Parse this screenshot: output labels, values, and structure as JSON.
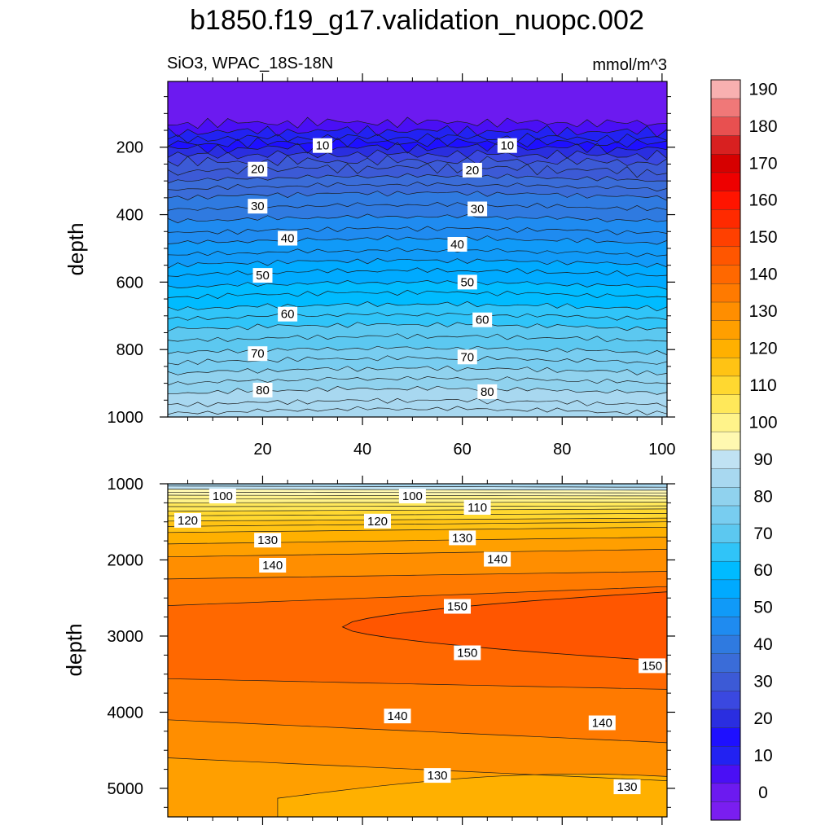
{
  "figure": {
    "title": "b1850.f19_g17.validation_nuopc.002",
    "left_string": "SiO3, WPAC_18S-18N",
    "right_string": "mmol/m^3"
  },
  "chart_data": [
    {
      "type": "contour",
      "panel": "top",
      "title": "",
      "xlabel": "",
      "ylabel": "depth",
      "xlim": [
        1,
        101
      ],
      "ylim": [
        1000,
        5
      ],
      "xticks": [
        20,
        40,
        60,
        80,
        100
      ],
      "yticks": [
        200,
        400,
        600,
        800,
        1000
      ],
      "description_values": "SiO3 increases with depth from ~0 near surface to ~90 at 1000 m",
      "contour_labels": [
        {
          "x": 32,
          "y": 195,
          "value": "10"
        },
        {
          "x": 69,
          "y": 195,
          "value": "10"
        },
        {
          "x": 19,
          "y": 265,
          "value": "20"
        },
        {
          "x": 62,
          "y": 268,
          "value": "20"
        },
        {
          "x": 19,
          "y": 375,
          "value": "30"
        },
        {
          "x": 63,
          "y": 383,
          "value": "30"
        },
        {
          "x": 25,
          "y": 470,
          "value": "40"
        },
        {
          "x": 59,
          "y": 488,
          "value": "40"
        },
        {
          "x": 20,
          "y": 580,
          "value": "50"
        },
        {
          "x": 61,
          "y": 600,
          "value": "50"
        },
        {
          "x": 25,
          "y": 695,
          "value": "60"
        },
        {
          "x": 64,
          "y": 712,
          "value": "60"
        },
        {
          "x": 19,
          "y": 812,
          "value": "70"
        },
        {
          "x": 61,
          "y": 822,
          "value": "70"
        },
        {
          "x": 20,
          "y": 920,
          "value": "80"
        },
        {
          "x": 65,
          "y": 925,
          "value": "80"
        }
      ]
    },
    {
      "type": "contour",
      "panel": "bottom",
      "title": "",
      "xlabel": "",
      "ylabel": "depth",
      "xlim": [
        1,
        101
      ],
      "ylim": [
        5375,
        1000
      ],
      "yticks": [
        1000,
        2000,
        3000,
        4000,
        5000
      ],
      "description_values": "SiO3 ~90 at 1000 m rising to a maximum >150 near 2500-3300 m on the east side, decreasing to ~130 at the bottom",
      "contour_labels": [
        {
          "x": 12,
          "y": 1160,
          "value": "100"
        },
        {
          "x": 50,
          "y": 1160,
          "value": "100"
        },
        {
          "x": 63,
          "y": 1310,
          "value": "110"
        },
        {
          "x": 5,
          "y": 1480,
          "value": "120"
        },
        {
          "x": 43,
          "y": 1490,
          "value": "120"
        },
        {
          "x": 21,
          "y": 1740,
          "value": "130"
        },
        {
          "x": 60,
          "y": 1710,
          "value": "130"
        },
        {
          "x": 22,
          "y": 2070,
          "value": "140"
        },
        {
          "x": 67,
          "y": 1990,
          "value": "140"
        },
        {
          "x": 59,
          "y": 2610,
          "value": "150"
        },
        {
          "x": 61,
          "y": 3220,
          "value": "150"
        },
        {
          "x": 98,
          "y": 3390,
          "value": "150"
        },
        {
          "x": 47,
          "y": 4050,
          "value": "140"
        },
        {
          "x": 88,
          "y": 4140,
          "value": "140"
        },
        {
          "x": 55,
          "y": 4830,
          "value": "130"
        },
        {
          "x": 93,
          "y": 4980,
          "value": "130"
        }
      ]
    }
  ],
  "colorbar": {
    "levels": [
      "0",
      "10",
      "20",
      "30",
      "40",
      "50",
      "60",
      "70",
      "80",
      "90",
      "100",
      "110",
      "120",
      "130",
      "140",
      "150",
      "160",
      "170",
      "180",
      "190"
    ],
    "colors": [
      "#7a1ef0",
      "#6c1af0",
      "#4a0ff5",
      "#2222f2",
      "#1e10ff",
      "#2a2ee0",
      "#3a48e0",
      "#3c5ad6",
      "#3a6cd8",
      "#2f7ae0",
      "#1f8bf0",
      "#109af8",
      "#00aaff",
      "#00bbff",
      "#30c4f8",
      "#5cc8f0",
      "#78cdf0",
      "#90d2ee",
      "#a8d8f0",
      "#c0e2f3",
      "#fff8b0",
      "#fff38a",
      "#ffe85a",
      "#ffd830",
      "#ffc314",
      "#ffb000",
      "#ff9f00",
      "#ff8e00",
      "#ff7a00",
      "#ff6800",
      "#ff5600",
      "#ff4000",
      "#ff2a00",
      "#ff1400",
      "#ee0000",
      "#d60000",
      "#d82020",
      "#e85050",
      "#f07878",
      "#f8b0b0"
    ]
  }
}
